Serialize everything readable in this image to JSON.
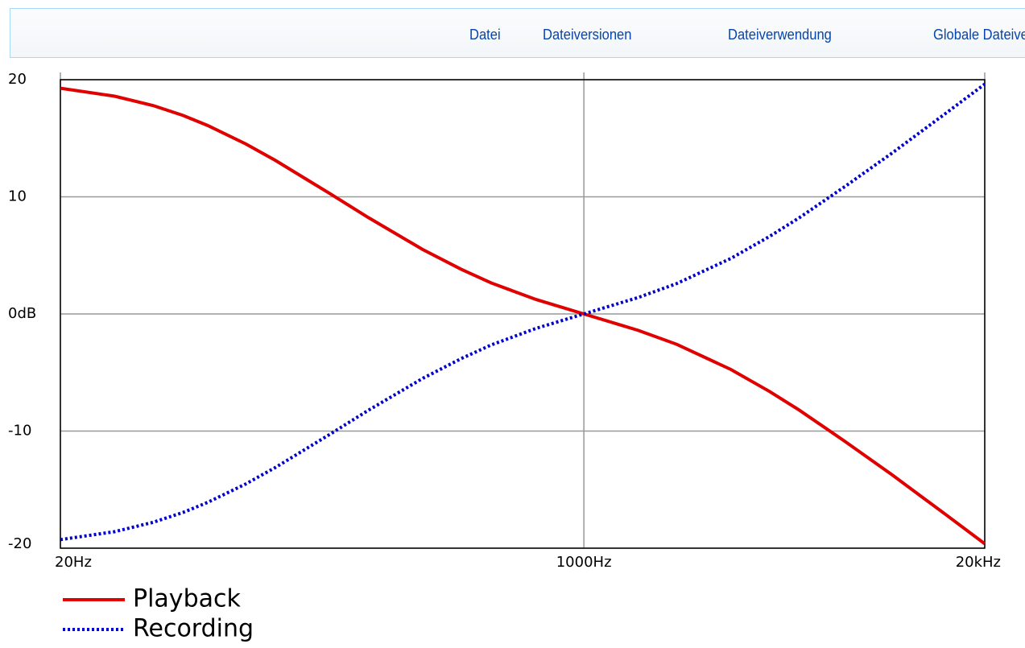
{
  "tabs": [
    "Datei",
    "Dateiversionen",
    "Dateiverwendung",
    "Globale Dateiverwendung"
  ],
  "chart_data": {
    "type": "line",
    "x": [
      20,
      30,
      40,
      50,
      60,
      80,
      100,
      150,
      200,
      300,
      400,
      500,
      700,
      1000,
      1500,
      2000,
      3000,
      4000,
      5000,
      7000,
      10000,
      15000,
      20000
    ],
    "series": [
      {
        "name": "Playback",
        "color": "#e00000",
        "style": "solid",
        "values": [
          19.27,
          18.59,
          17.79,
          16.95,
          16.1,
          14.51,
          13.09,
          10.27,
          8.22,
          5.5,
          3.81,
          2.65,
          1.23,
          0,
          -1.4,
          -2.59,
          -4.74,
          -6.61,
          -8.21,
          -10.84,
          -13.73,
          -17.16,
          -19.62
        ]
      },
      {
        "name": "Recording",
        "color": "#0000cc",
        "style": "dotted",
        "values": [
          -19.27,
          -18.59,
          -17.79,
          -16.95,
          -16.1,
          -14.51,
          -13.09,
          -10.27,
          -8.22,
          -5.5,
          -3.81,
          -2.65,
          -1.23,
          0,
          1.4,
          2.59,
          4.74,
          6.61,
          8.21,
          10.84,
          13.73,
          17.16,
          19.62
        ]
      }
    ],
    "xscale": "log",
    "xlim": [
      20,
      20000
    ],
    "xticks": [
      {
        "value": 20,
        "label": "20Hz"
      },
      {
        "value": 1000,
        "label": "1000Hz"
      },
      {
        "value": 20000,
        "label": "20kHz"
      }
    ],
    "ylim": [
      -20,
      20
    ],
    "yticks": [
      20,
      10,
      {
        "value": 0,
        "label": "0dB"
      },
      -10,
      -20
    ],
    "grid": true
  }
}
